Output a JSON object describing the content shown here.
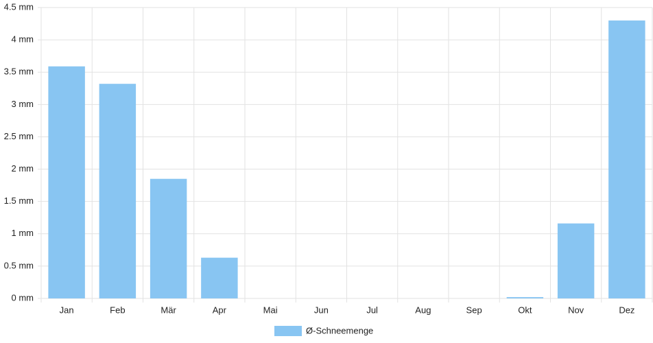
{
  "chart_data": {
    "type": "bar",
    "categories": [
      "Jan",
      "Feb",
      "Mär",
      "Apr",
      "Mai",
      "Jun",
      "Jul",
      "Aug",
      "Sep",
      "Okt",
      "Nov",
      "Dez"
    ],
    "series": [
      {
        "name": "Ø-Schneemenge",
        "color": "#88c5f2",
        "values": [
          3.59,
          3.32,
          1.85,
          0.63,
          0,
          0,
          0,
          0,
          0,
          0.02,
          1.16,
          4.3
        ]
      }
    ],
    "ylim": [
      0,
      4.5
    ],
    "yticks": [
      {
        "value": 0,
        "label": "0 mm"
      },
      {
        "value": 0.5,
        "label": "0.5 mm"
      },
      {
        "value": 1,
        "label": "1 mm"
      },
      {
        "value": 1.5,
        "label": "1.5 mm"
      },
      {
        "value": 2,
        "label": "2 mm"
      },
      {
        "value": 2.5,
        "label": "2.5 mm"
      },
      {
        "value": 3,
        "label": "3 mm"
      },
      {
        "value": 3.5,
        "label": "3.5 mm"
      },
      {
        "value": 4,
        "label": "4 mm"
      },
      {
        "value": 4.5,
        "label": "4.5 mm"
      }
    ],
    "grid": true,
    "legend": "bottom"
  }
}
